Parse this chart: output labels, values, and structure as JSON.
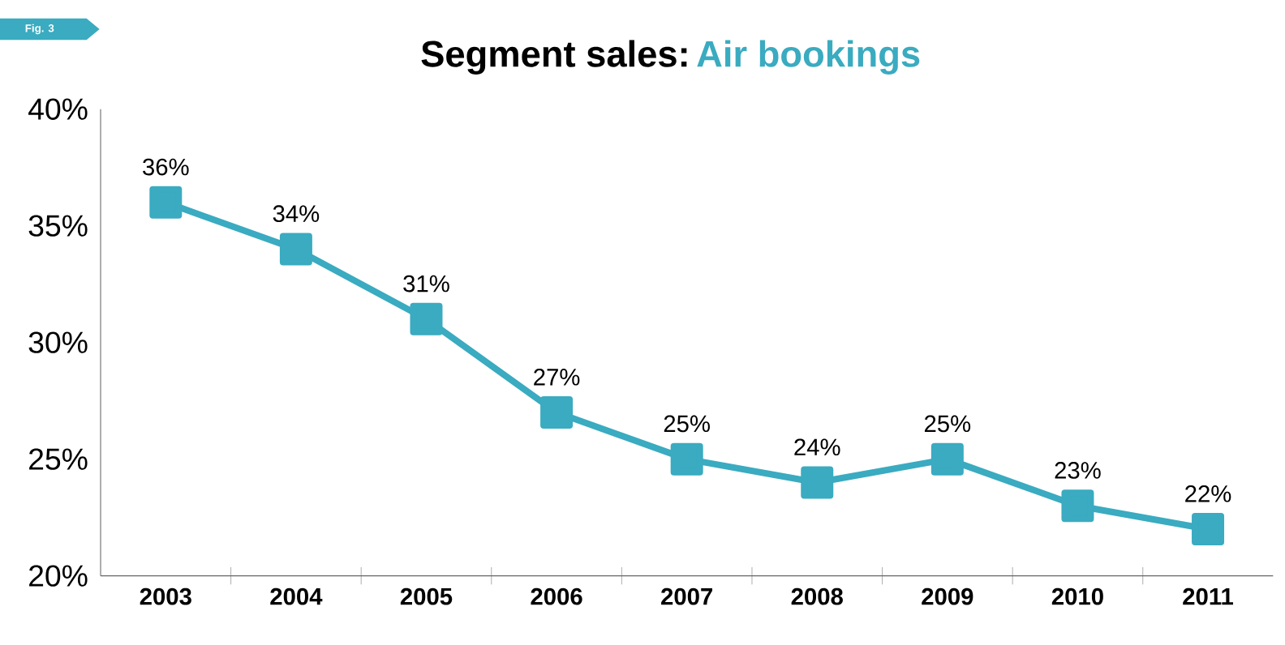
{
  "chart_data": {
    "type": "line",
    "title": "Segment sales:",
    "subtitle": "Air bookings",
    "annotations": [
      "Fig. 3"
    ],
    "categories": [
      "2003",
      "2004",
      "2005",
      "2006",
      "2007",
      "2008",
      "2009",
      "2010",
      "2011"
    ],
    "series": [
      {
        "color": "#3aabc0",
        "values": [
          36,
          34,
          31,
          27,
          25,
          24,
          25,
          23,
          22
        ],
        "value_labels": [
          "36%",
          "34%",
          "31%",
          "27%",
          "25%",
          "24%",
          "25%",
          "23%",
          "22%"
        ]
      }
    ],
    "ylim": [
      20,
      40
    ],
    "yticks": [
      {
        "value": 20,
        "label": "20%"
      },
      {
        "value": 25,
        "label": "25%"
      },
      {
        "value": 30,
        "label": "30%"
      },
      {
        "value": 35,
        "label": "35%"
      },
      {
        "value": 40,
        "label": "40%"
      }
    ],
    "grid": false,
    "marker": "square",
    "line_style": "solid"
  }
}
